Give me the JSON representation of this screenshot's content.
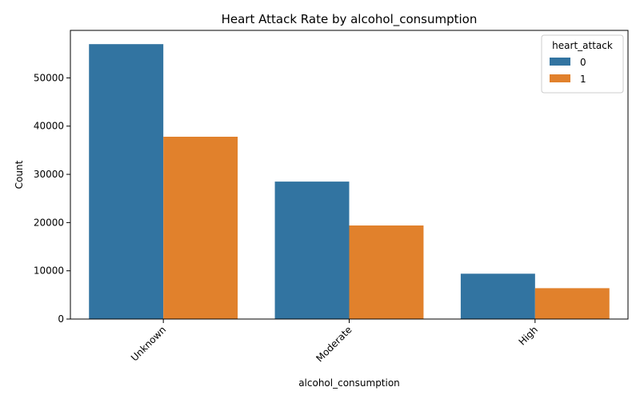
{
  "chart_data": {
    "type": "bar",
    "title": "Heart Attack Rate by alcohol_consumption",
    "xlabel": "alcohol_consumption",
    "ylabel": "Count",
    "categories": [
      "Unknown",
      "Moderate",
      "High"
    ],
    "series": [
      {
        "name": "0",
        "color": "#3274a1",
        "values": [
          57000,
          28500,
          9400
        ]
      },
      {
        "name": "1",
        "color": "#e1812c",
        "values": [
          37800,
          19400,
          6400
        ]
      }
    ],
    "ylim": [
      0,
      59850
    ],
    "yticks": [
      0,
      10000,
      20000,
      30000,
      40000,
      50000
    ],
    "grid": false,
    "legend": {
      "title": "heart_attack",
      "placement": "top-right"
    },
    "x_tick_rotation": 45
  }
}
